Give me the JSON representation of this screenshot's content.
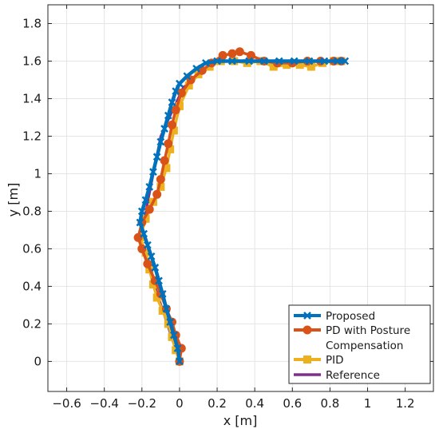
{
  "chart_data": {
    "type": "line",
    "title": "",
    "xlabel": "x [m]",
    "ylabel": "y [m]",
    "xlim": [
      -0.7,
      1.35
    ],
    "ylim": [
      -0.16,
      1.9
    ],
    "xticks": [
      -0.6,
      -0.4,
      -0.2,
      0,
      0.2,
      0.4,
      0.6,
      0.8,
      1,
      1.2
    ],
    "xtick_labels": [
      "−0.6",
      "−0.4",
      "−0.2",
      "0",
      "0.2",
      "0.4",
      "0.6",
      "0.8",
      "1",
      "1.2"
    ],
    "yticks": [
      0,
      0.2,
      0.4,
      0.6,
      0.8,
      1,
      1.2,
      1.4,
      1.6,
      1.8
    ],
    "ytick_labels": [
      "0",
      "0.2",
      "0.4",
      "0.6",
      "0.8",
      "1",
      "1.2",
      "1.4",
      "1.6",
      "1.8"
    ],
    "grid": true,
    "legend_position": "bottom-right",
    "series": [
      {
        "name": "Proposed",
        "color": "#0072bd",
        "marker": "x",
        "x": [
          0.0,
          -0.01,
          -0.03,
          -0.05,
          -0.07,
          -0.09,
          -0.11,
          -0.13,
          -0.15,
          -0.17,
          -0.19,
          -0.21,
          -0.2,
          -0.18,
          -0.16,
          -0.14,
          -0.12,
          -0.1,
          -0.08,
          -0.06,
          -0.04,
          -0.02,
          0.0,
          0.04,
          0.09,
          0.14,
          0.2,
          0.28,
          0.37,
          0.45,
          0.53,
          0.61,
          0.69,
          0.77,
          0.84,
          0.88
        ],
        "y": [
          0.0,
          0.07,
          0.14,
          0.21,
          0.28,
          0.36,
          0.43,
          0.5,
          0.56,
          0.62,
          0.68,
          0.74,
          0.8,
          0.86,
          0.93,
          1.01,
          1.09,
          1.17,
          1.24,
          1.31,
          1.38,
          1.44,
          1.48,
          1.52,
          1.56,
          1.59,
          1.6,
          1.6,
          1.6,
          1.6,
          1.6,
          1.6,
          1.6,
          1.6,
          1.6,
          1.6
        ]
      },
      {
        "name": "PD with Posture Compensation",
        "color": "#d95319",
        "marker": "o",
        "x": [
          0.0,
          0.01,
          -0.02,
          -0.04,
          -0.07,
          -0.1,
          -0.13,
          -0.17,
          -0.2,
          -0.22,
          -0.2,
          -0.16,
          -0.12,
          -0.1,
          -0.08,
          -0.06,
          -0.04,
          -0.02,
          0.01,
          0.06,
          0.12,
          0.17,
          0.23,
          0.28,
          0.32,
          0.38,
          0.45,
          0.52,
          0.6,
          0.68,
          0.75,
          0.82,
          0.86
        ],
        "y": [
          0.0,
          0.07,
          0.14,
          0.21,
          0.28,
          0.36,
          0.43,
          0.52,
          0.6,
          0.66,
          0.74,
          0.81,
          0.89,
          0.97,
          1.07,
          1.16,
          1.26,
          1.34,
          1.43,
          1.5,
          1.55,
          1.59,
          1.63,
          1.64,
          1.65,
          1.63,
          1.6,
          1.59,
          1.59,
          1.6,
          1.6,
          1.6,
          1.6
        ]
      },
      {
        "name": "PID",
        "color": "#edb120",
        "marker": "s",
        "x": [
          0.0,
          -0.02,
          -0.04,
          -0.06,
          -0.09,
          -0.12,
          -0.14,
          -0.16,
          -0.18,
          -0.21,
          -0.18,
          -0.14,
          -0.1,
          -0.07,
          -0.05,
          -0.03,
          0.0,
          0.05,
          0.1,
          0.16,
          0.22,
          0.29,
          0.36,
          0.43,
          0.5,
          0.57,
          0.64,
          0.7,
          0.76,
          0.82,
          0.86
        ],
        "y": [
          0.0,
          0.06,
          0.13,
          0.2,
          0.27,
          0.34,
          0.41,
          0.49,
          0.58,
          0.66,
          0.76,
          0.85,
          0.93,
          1.03,
          1.13,
          1.23,
          1.36,
          1.47,
          1.53,
          1.57,
          1.6,
          1.6,
          1.59,
          1.6,
          1.57,
          1.58,
          1.58,
          1.57,
          1.59,
          1.6,
          1.6
        ]
      },
      {
        "name": "Reference",
        "color": "#7e2f8e",
        "marker": "none",
        "x": [
          0.0,
          -0.21,
          -0.1,
          0.02,
          0.2,
          0.88
        ],
        "y": [
          0.0,
          0.64,
          1.2,
          1.46,
          1.6,
          1.6
        ]
      }
    ],
    "legend_entries": [
      "Proposed",
      "PD with Posture",
      "Compensation",
      "PID",
      "Reference"
    ]
  }
}
